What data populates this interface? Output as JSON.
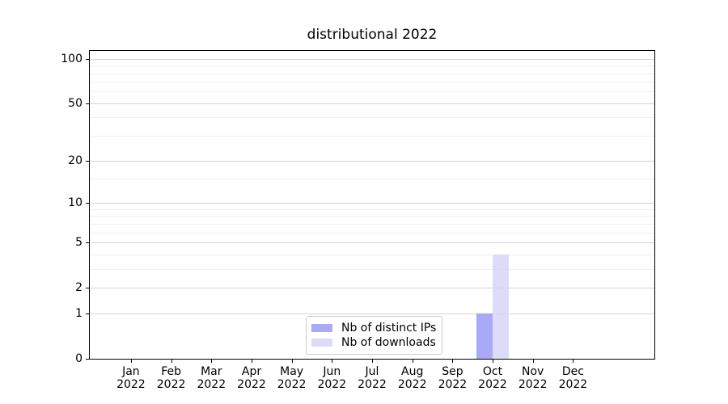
{
  "chart_data": {
    "type": "bar",
    "title": "distributional 2022",
    "categories": [
      "Jan 2022",
      "Feb 2022",
      "Mar 2022",
      "Apr 2022",
      "May 2022",
      "Jun 2022",
      "Jul 2022",
      "Aug 2022",
      "Sep 2022",
      "Oct 2022",
      "Nov 2022",
      "Dec 2022"
    ],
    "x_tick_months": [
      "Jan",
      "Feb",
      "Mar",
      "Apr",
      "May",
      "Jun",
      "Jul",
      "Aug",
      "Sep",
      "Oct",
      "Nov",
      "Dec"
    ],
    "x_tick_year": "2022",
    "series": [
      {
        "name": "Nb of distinct IPs",
        "color": "rgba(148,148,246,0.8)",
        "values": [
          0,
          0,
          0,
          0,
          0,
          0,
          0,
          0,
          0,
          1,
          0,
          0
        ]
      },
      {
        "name": "Nb of downloads",
        "color": "rgba(211,211,248,0.8)",
        "values": [
          0,
          0,
          0,
          0,
          0,
          0,
          0,
          0,
          0,
          4,
          0,
          0
        ]
      }
    ],
    "yscale": "log1p",
    "ylim": [
      0,
      113
    ],
    "yticks": [
      0,
      1,
      2,
      5,
      10,
      20,
      50,
      100
    ],
    "minor_yticks": [
      3,
      4,
      6,
      7,
      8,
      9,
      15,
      30,
      40,
      60,
      70,
      80,
      90
    ],
    "grid": true,
    "legend_position": "lower center",
    "colors": {
      "major_grid": "rgba(176,176,176,0.55)",
      "minor_grid": "rgba(176,176,176,0.20)",
      "spine": "#000000",
      "text": "#000000",
      "legend_border": "#cccccc"
    }
  }
}
